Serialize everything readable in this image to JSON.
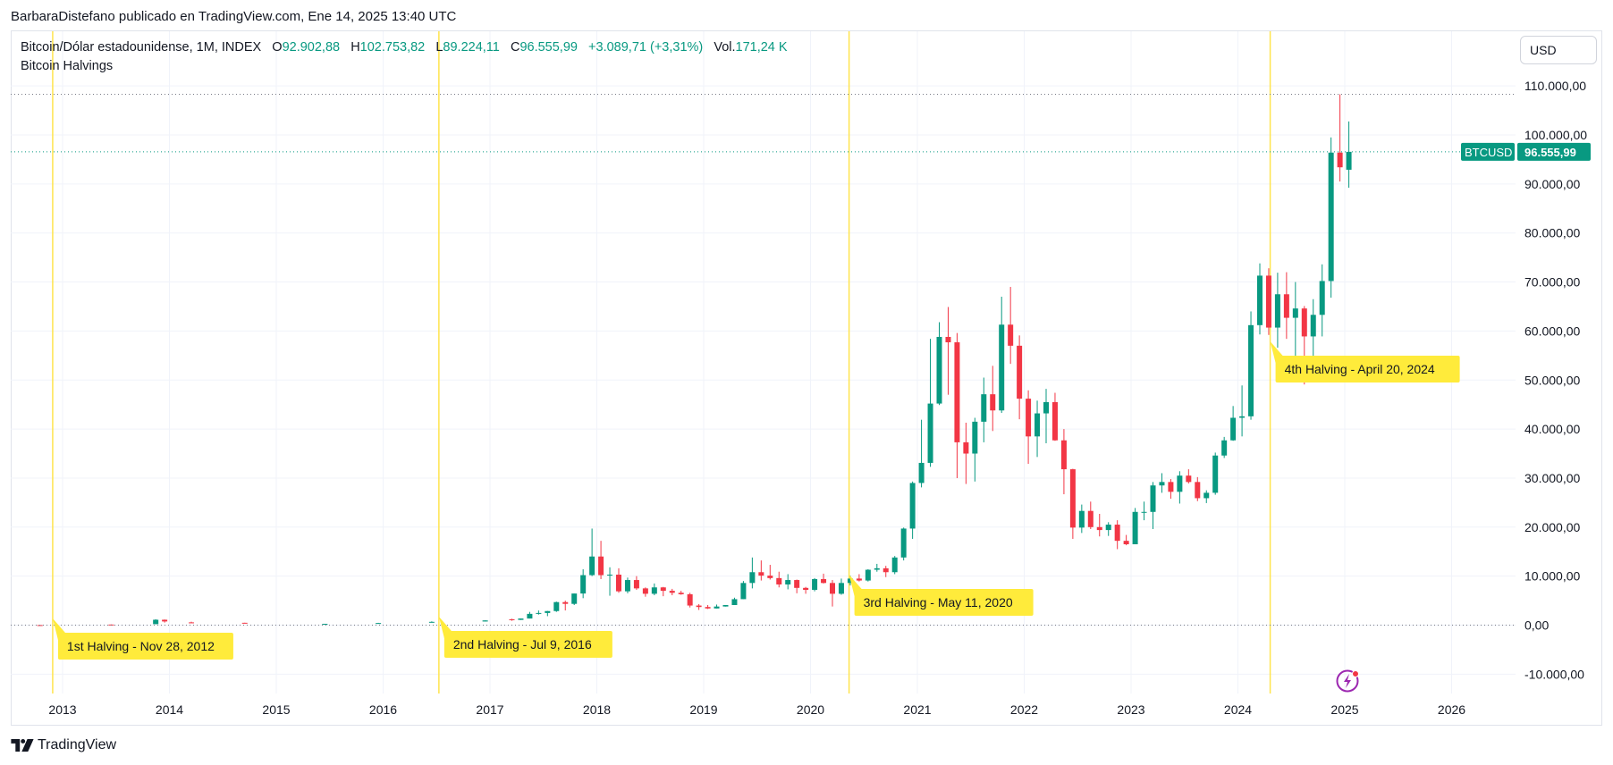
{
  "publisher_line": "BarbaraDistefano publicado en TradingView.com, Ene 14, 2025 13:40 UTC",
  "legend": {
    "symbol": "Bitcoin/Dólar estadounidense, 1M, INDEX",
    "o_label": "O",
    "o_value": "92.902,88",
    "h_label": "H",
    "h_value": "102.753,82",
    "l_label": "L",
    "l_value": "89.224,11",
    "c_label": "C",
    "c_value": "96.555,99",
    "change": "+3.089,71 (+3,31%)",
    "vol_label": "Vol.",
    "vol_value": "171,24 K",
    "indicator": "Bitcoin Halvings"
  },
  "currency": "USD",
  "brand": "TradingView",
  "colors": {
    "up": "#089981",
    "down": "#F23645",
    "halving_line": "#FFE44D",
    "halving_label_bg": "#FFEB3B",
    "grid": "#f0f3fa",
    "accent_flash": "#9C27B0"
  },
  "icons": {
    "brand": "tradingview-logo-icon",
    "flash": "lightning-icon"
  },
  "chart_data": {
    "type": "candlestick",
    "interval": "1M",
    "ylim": [
      -15000,
      120000
    ],
    "y_ticks": [
      {
        "value": 110000,
        "label": "110.000,00"
      },
      {
        "value": 100000,
        "label": "100.000,00"
      },
      {
        "value": 90000,
        "label": "90.000,00"
      },
      {
        "value": 80000,
        "label": "80.000,00"
      },
      {
        "value": 70000,
        "label": "70.000,00"
      },
      {
        "value": 60000,
        "label": "60.000,00"
      },
      {
        "value": 50000,
        "label": "50.000,00"
      },
      {
        "value": 40000,
        "label": "40.000,00"
      },
      {
        "value": 30000,
        "label": "30.000,00"
      },
      {
        "value": 20000,
        "label": "20.000,00"
      },
      {
        "value": 10000,
        "label": "10.000,00"
      },
      {
        "value": 0,
        "label": "0,00"
      },
      {
        "value": -10000,
        "label": "-10.000,00"
      }
    ],
    "x_ticks": [
      "2013",
      "2014",
      "2015",
      "2016",
      "2017",
      "2018",
      "2019",
      "2020",
      "2021",
      "2022",
      "2023",
      "2024",
      "2025",
      "2026"
    ],
    "price_marker": {
      "label": "BTCUSD",
      "value": 96555.99,
      "text": "96.555,99"
    },
    "high_line": 108300,
    "halvings": [
      {
        "date": "2012-11-28",
        "label": "1st Halving - Nov 28, 2012"
      },
      {
        "date": "2016-07-09",
        "label": "2nd Halving - Jul 9, 2016"
      },
      {
        "date": "2020-05-11",
        "label": "3rd Halving - May 11, 2020"
      },
      {
        "date": "2024-04-20",
        "label": "4th Halving - April 20, 2024"
      }
    ],
    "candles": [
      {
        "date": "2012-10",
        "o": 12,
        "h": 13,
        "l": 10,
        "c": 11
      },
      {
        "date": "2013-06",
        "o": 120,
        "h": 130,
        "l": 70,
        "c": 95
      },
      {
        "date": "2013-11",
        "o": 200,
        "h": 1200,
        "l": 190,
        "c": 1100
      },
      {
        "date": "2013-12",
        "o": 1100,
        "h": 1150,
        "l": 520,
        "c": 750
      },
      {
        "date": "2014-03",
        "o": 560,
        "h": 700,
        "l": 440,
        "c": 460
      },
      {
        "date": "2014-09",
        "o": 480,
        "h": 490,
        "l": 370,
        "c": 390
      },
      {
        "date": "2015-06",
        "o": 230,
        "h": 270,
        "l": 220,
        "c": 265
      },
      {
        "date": "2015-12",
        "o": 380,
        "h": 470,
        "l": 350,
        "c": 430
      },
      {
        "date": "2016-06",
        "o": 530,
        "h": 770,
        "l": 520,
        "c": 670
      },
      {
        "date": "2016-12",
        "o": 740,
        "h": 980,
        "l": 730,
        "c": 960
      },
      {
        "date": "2017-03",
        "o": 1180,
        "h": 1300,
        "l": 890,
        "c": 1070
      },
      {
        "date": "2017-04",
        "o": 1070,
        "h": 1350,
        "l": 1060,
        "c": 1350
      },
      {
        "date": "2017-05",
        "o": 1350,
        "h": 2700,
        "l": 1350,
        "c": 2300
      },
      {
        "date": "2017-06",
        "o": 2300,
        "h": 2980,
        "l": 2150,
        "c": 2480
      },
      {
        "date": "2017-07",
        "o": 2480,
        "h": 2900,
        "l": 1830,
        "c": 2870
      },
      {
        "date": "2017-08",
        "o": 2870,
        "h": 4800,
        "l": 2700,
        "c": 4700
      },
      {
        "date": "2017-09",
        "o": 4700,
        "h": 5000,
        "l": 3000,
        "c": 4340
      },
      {
        "date": "2017-10",
        "o": 4340,
        "h": 6450,
        "l": 4100,
        "c": 6450
      },
      {
        "date": "2017-11",
        "o": 6450,
        "h": 11400,
        "l": 5500,
        "c": 10200
      },
      {
        "date": "2017-12",
        "o": 10200,
        "h": 19700,
        "l": 10000,
        "c": 14000
      },
      {
        "date": "2018-01",
        "o": 14000,
        "h": 17200,
        "l": 9400,
        "c": 10200
      },
      {
        "date": "2018-02",
        "o": 10200,
        "h": 11800,
        "l": 6000,
        "c": 10300
      },
      {
        "date": "2018-03",
        "o": 10300,
        "h": 11600,
        "l": 6600,
        "c": 6900
      },
      {
        "date": "2018-04",
        "o": 6900,
        "h": 9700,
        "l": 6500,
        "c": 9200
      },
      {
        "date": "2018-05",
        "o": 9200,
        "h": 10000,
        "l": 7200,
        "c": 7500
      },
      {
        "date": "2018-06",
        "o": 7500,
        "h": 7700,
        "l": 5800,
        "c": 6400
      },
      {
        "date": "2018-07",
        "o": 6400,
        "h": 8500,
        "l": 6100,
        "c": 7700
      },
      {
        "date": "2018-08",
        "o": 7700,
        "h": 7800,
        "l": 5900,
        "c": 7000
      },
      {
        "date": "2018-09",
        "o": 7000,
        "h": 7400,
        "l": 6100,
        "c": 6600
      },
      {
        "date": "2018-10",
        "o": 6600,
        "h": 7000,
        "l": 6200,
        "c": 6300
      },
      {
        "date": "2018-11",
        "o": 6300,
        "h": 6600,
        "l": 3600,
        "c": 4000
      },
      {
        "date": "2018-12",
        "o": 4000,
        "h": 4300,
        "l": 3100,
        "c": 3700
      },
      {
        "date": "2019-01",
        "o": 3700,
        "h": 4100,
        "l": 3300,
        "c": 3400
      },
      {
        "date": "2019-02",
        "o": 3400,
        "h": 4200,
        "l": 3400,
        "c": 3800
      },
      {
        "date": "2019-03",
        "o": 3800,
        "h": 4100,
        "l": 3800,
        "c": 4100
      },
      {
        "date": "2019-04",
        "o": 4100,
        "h": 5600,
        "l": 4100,
        "c": 5300
      },
      {
        "date": "2019-05",
        "o": 5300,
        "h": 9000,
        "l": 5300,
        "c": 8600
      },
      {
        "date": "2019-06",
        "o": 8600,
        "h": 13800,
        "l": 7500,
        "c": 10800
      },
      {
        "date": "2019-07",
        "o": 10800,
        "h": 13200,
        "l": 9100,
        "c": 10100
      },
      {
        "date": "2019-08",
        "o": 10100,
        "h": 12300,
        "l": 9300,
        "c": 9600
      },
      {
        "date": "2019-09",
        "o": 9600,
        "h": 10900,
        "l": 7700,
        "c": 8300
      },
      {
        "date": "2019-10",
        "o": 8300,
        "h": 10400,
        "l": 7300,
        "c": 9200
      },
      {
        "date": "2019-11",
        "o": 9200,
        "h": 9300,
        "l": 6500,
        "c": 7600
      },
      {
        "date": "2019-12",
        "o": 7600,
        "h": 7800,
        "l": 6400,
        "c": 7200
      },
      {
        "date": "2020-01",
        "o": 7200,
        "h": 9600,
        "l": 6900,
        "c": 9400
      },
      {
        "date": "2020-02",
        "o": 9400,
        "h": 10500,
        "l": 8500,
        "c": 8600
      },
      {
        "date": "2020-03",
        "o": 8600,
        "h": 9200,
        "l": 3800,
        "c": 6400
      },
      {
        "date": "2020-04",
        "o": 6400,
        "h": 9500,
        "l": 6200,
        "c": 8600
      },
      {
        "date": "2020-05",
        "o": 8600,
        "h": 10100,
        "l": 8100,
        "c": 9500
      },
      {
        "date": "2020-06",
        "o": 9500,
        "h": 10400,
        "l": 8900,
        "c": 9100
      },
      {
        "date": "2020-07",
        "o": 9100,
        "h": 11400,
        "l": 8900,
        "c": 11300
      },
      {
        "date": "2020-08",
        "o": 11300,
        "h": 12500,
        "l": 10900,
        "c": 11600
      },
      {
        "date": "2020-09",
        "o": 11600,
        "h": 12100,
        "l": 9800,
        "c": 10800
      },
      {
        "date": "2020-10",
        "o": 10800,
        "h": 14100,
        "l": 10400,
        "c": 13800
      },
      {
        "date": "2020-11",
        "o": 13800,
        "h": 19900,
        "l": 13200,
        "c": 19700
      },
      {
        "date": "2020-12",
        "o": 19700,
        "h": 29300,
        "l": 17600,
        "c": 29000
      },
      {
        "date": "2021-01",
        "o": 29000,
        "h": 41900,
        "l": 28100,
        "c": 33100
      },
      {
        "date": "2021-02",
        "o": 33100,
        "h": 58400,
        "l": 32300,
        "c": 45200
      },
      {
        "date": "2021-03",
        "o": 45200,
        "h": 61800,
        "l": 44900,
        "c": 58800
      },
      {
        "date": "2021-04",
        "o": 58800,
        "h": 64900,
        "l": 47000,
        "c": 57700
      },
      {
        "date": "2021-05",
        "o": 57700,
        "h": 59600,
        "l": 30000,
        "c": 37300
      },
      {
        "date": "2021-06",
        "o": 37300,
        "h": 41300,
        "l": 28800,
        "c": 35000
      },
      {
        "date": "2021-07",
        "o": 35000,
        "h": 42300,
        "l": 29300,
        "c": 41500
      },
      {
        "date": "2021-08",
        "o": 41500,
        "h": 50500,
        "l": 37300,
        "c": 47100
      },
      {
        "date": "2021-09",
        "o": 47100,
        "h": 52900,
        "l": 39600,
        "c": 43800
      },
      {
        "date": "2021-10",
        "o": 43800,
        "h": 67000,
        "l": 43300,
        "c": 61300
      },
      {
        "date": "2021-11",
        "o": 61300,
        "h": 69000,
        "l": 53300,
        "c": 57000
      },
      {
        "date": "2021-12",
        "o": 57000,
        "h": 59100,
        "l": 42000,
        "c": 46200
      },
      {
        "date": "2022-01",
        "o": 46200,
        "h": 47900,
        "l": 32900,
        "c": 38500
      },
      {
        "date": "2022-02",
        "o": 38500,
        "h": 45800,
        "l": 34300,
        "c": 43200
      },
      {
        "date": "2022-03",
        "o": 43200,
        "h": 48200,
        "l": 37100,
        "c": 45500
      },
      {
        "date": "2022-04",
        "o": 45500,
        "h": 47400,
        "l": 37600,
        "c": 37700
      },
      {
        "date": "2022-05",
        "o": 37700,
        "h": 40000,
        "l": 26700,
        "c": 31800
      },
      {
        "date": "2022-06",
        "o": 31800,
        "h": 31900,
        "l": 17600,
        "c": 19900
      },
      {
        "date": "2022-07",
        "o": 19900,
        "h": 24600,
        "l": 18800,
        "c": 23300
      },
      {
        "date": "2022-08",
        "o": 23300,
        "h": 25200,
        "l": 19600,
        "c": 20000
      },
      {
        "date": "2022-09",
        "o": 20000,
        "h": 22700,
        "l": 18100,
        "c": 19400
      },
      {
        "date": "2022-10",
        "o": 19400,
        "h": 21000,
        "l": 18200,
        "c": 20500
      },
      {
        "date": "2022-11",
        "o": 20500,
        "h": 21400,
        "l": 15500,
        "c": 17200
      },
      {
        "date": "2022-12",
        "o": 17200,
        "h": 18400,
        "l": 16300,
        "c": 16500
      },
      {
        "date": "2023-01",
        "o": 16500,
        "h": 23900,
        "l": 16500,
        "c": 23100
      },
      {
        "date": "2023-02",
        "o": 23100,
        "h": 25200,
        "l": 21400,
        "c": 23100
      },
      {
        "date": "2023-03",
        "o": 23100,
        "h": 29200,
        "l": 19600,
        "c": 28500
      },
      {
        "date": "2023-04",
        "o": 28500,
        "h": 31000,
        "l": 27000,
        "c": 29200
      },
      {
        "date": "2023-05",
        "o": 29200,
        "h": 29800,
        "l": 25800,
        "c": 27200
      },
      {
        "date": "2023-06",
        "o": 27200,
        "h": 31400,
        "l": 24800,
        "c": 30500
      },
      {
        "date": "2023-07",
        "o": 30500,
        "h": 31800,
        "l": 28900,
        "c": 29200
      },
      {
        "date": "2023-08",
        "o": 29200,
        "h": 30200,
        "l": 25300,
        "c": 25900
      },
      {
        "date": "2023-09",
        "o": 25900,
        "h": 27500,
        "l": 24900,
        "c": 27000
      },
      {
        "date": "2023-10",
        "o": 27000,
        "h": 35200,
        "l": 26600,
        "c": 34600
      },
      {
        "date": "2023-11",
        "o": 34600,
        "h": 38400,
        "l": 34100,
        "c": 37700
      },
      {
        "date": "2023-12",
        "o": 37700,
        "h": 44700,
        "l": 37600,
        "c": 42300
      },
      {
        "date": "2024-01",
        "o": 42300,
        "h": 48900,
        "l": 38500,
        "c": 42600
      },
      {
        "date": "2024-02",
        "o": 42600,
        "h": 64000,
        "l": 41900,
        "c": 61200
      },
      {
        "date": "2024-03",
        "o": 61200,
        "h": 73800,
        "l": 59300,
        "c": 71300
      },
      {
        "date": "2024-04",
        "o": 71300,
        "h": 72800,
        "l": 59200,
        "c": 60700
      },
      {
        "date": "2024-05",
        "o": 60700,
        "h": 71900,
        "l": 56600,
        "c": 67500
      },
      {
        "date": "2024-06",
        "o": 67500,
        "h": 72000,
        "l": 58400,
        "c": 62700
      },
      {
        "date": "2024-07",
        "o": 62700,
        "h": 70000,
        "l": 53500,
        "c": 64600
      },
      {
        "date": "2024-08",
        "o": 64600,
        "h": 65100,
        "l": 49100,
        "c": 58900
      },
      {
        "date": "2024-09",
        "o": 58900,
        "h": 66500,
        "l": 52500,
        "c": 63300
      },
      {
        "date": "2024-10",
        "o": 63300,
        "h": 73600,
        "l": 58900,
        "c": 70200
      },
      {
        "date": "2024-11",
        "o": 70200,
        "h": 99500,
        "l": 66800,
        "c": 96400
      },
      {
        "date": "2024-12",
        "o": 96400,
        "h": 108300,
        "l": 90500,
        "c": 93400
      },
      {
        "date": "2025-01",
        "o": 92902.88,
        "h": 102753.82,
        "l": 89224.11,
        "c": 96555.99
      }
    ]
  }
}
